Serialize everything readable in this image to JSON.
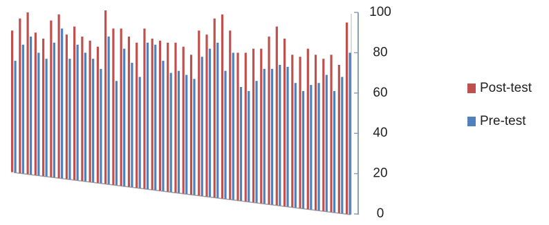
{
  "chart_data": {
    "type": "bar",
    "series": [
      {
        "name": "Post-test",
        "color": "#c0504d",
        "values": [
          91,
          97,
          100,
          90,
          87,
          96,
          99,
          89,
          93,
          88,
          86,
          83,
          101,
          92,
          92,
          88,
          85,
          92,
          87,
          86,
          85,
          85,
          83,
          79,
          91,
          89,
          97,
          99,
          91,
          80,
          80,
          82,
          82,
          88,
          93,
          87,
          79,
          78,
          82,
          79,
          77,
          79,
          74,
          95
        ]
      },
      {
        "name": "Pre-test",
        "color": "#4f81bd",
        "values": [
          76,
          84,
          88,
          80,
          77,
          85,
          92,
          77,
          84,
          80,
          77,
          72,
          88,
          66,
          82,
          75,
          68,
          85,
          84,
          76,
          70,
          71,
          69,
          67,
          78,
          82,
          85,
          71,
          80,
          63,
          61,
          66,
          72,
          72,
          74,
          73,
          65,
          61,
          64,
          65,
          69,
          61,
          68,
          80
        ]
      }
    ],
    "ylim": [
      0,
      100
    ],
    "yticks": [
      0,
      20,
      40,
      60,
      80,
      100
    ],
    "legend": "right"
  }
}
